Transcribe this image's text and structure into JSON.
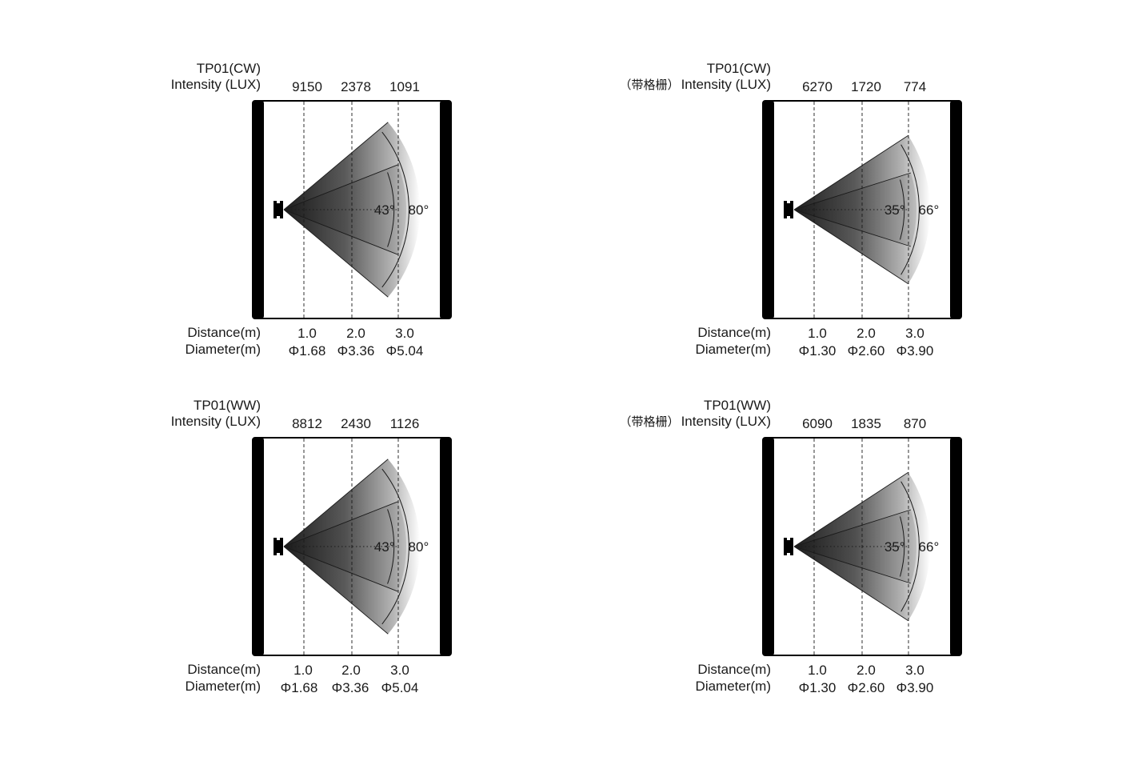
{
  "panels": [
    {
      "title": "TP01(CW)",
      "prefix": "",
      "intensity_label": "Intensity (LUX)",
      "lux": [
        "9150",
        "2378",
        "1091"
      ],
      "distance_label": "Distance(m)",
      "diameter_label": "Diameter(m)",
      "distances": [
        "1.0",
        "2.0",
        "3.0"
      ],
      "diameters": [
        "Φ1.68",
        "Φ3.36",
        "Φ5.04"
      ],
      "beam_angle": "43°",
      "field_angle": "80°",
      "beam_deg": 43,
      "field_deg": 80
    },
    {
      "title": "TP01(CW)",
      "prefix": "（带格栅）",
      "intensity_label": "Intensity (LUX)",
      "lux": [
        "6270",
        "1720",
        "774"
      ],
      "distance_label": "Distance(m)",
      "diameter_label": "Diameter(m)",
      "distances": [
        "1.0",
        "2.0",
        "3.0"
      ],
      "diameters": [
        "Φ1.30",
        "Φ2.60",
        "Φ3.90"
      ],
      "beam_angle": "35°",
      "field_angle": "66°",
      "beam_deg": 35,
      "field_deg": 66
    },
    {
      "title": "TP01(WW)",
      "prefix": "",
      "intensity_label": "Intensity (LUX)",
      "lux": [
        "8812",
        "2430",
        "1126"
      ],
      "distance_label": "Distance(m)",
      "diameter_label": "Diameter(m)",
      "distances": [
        "1.0",
        "2.0",
        "3.0"
      ],
      "diameters": [
        "Φ1.68",
        "Φ3.36",
        "Φ5.04"
      ],
      "beam_angle": "43°",
      "field_angle": "80°",
      "beam_deg": 43,
      "field_deg": 80
    },
    {
      "title": "TP01(WW)",
      "prefix": "（带格栅）",
      "intensity_label": "Intensity (LUX)",
      "lux": [
        "6090",
        "1835",
        "870"
      ],
      "distance_label": "Distance(m)",
      "diameter_label": "Diameter(m)",
      "distances": [
        "1.0",
        "2.0",
        "3.0"
      ],
      "diameters": [
        "Φ1.30",
        "Φ2.60",
        "Φ3.90"
      ],
      "beam_angle": "35°",
      "field_angle": "66°",
      "beam_deg": 35,
      "field_deg": 66
    }
  ],
  "colors": {
    "ink": "#1a1a1a",
    "frame": "#000000",
    "beam_dark": "#2b2b2b"
  }
}
